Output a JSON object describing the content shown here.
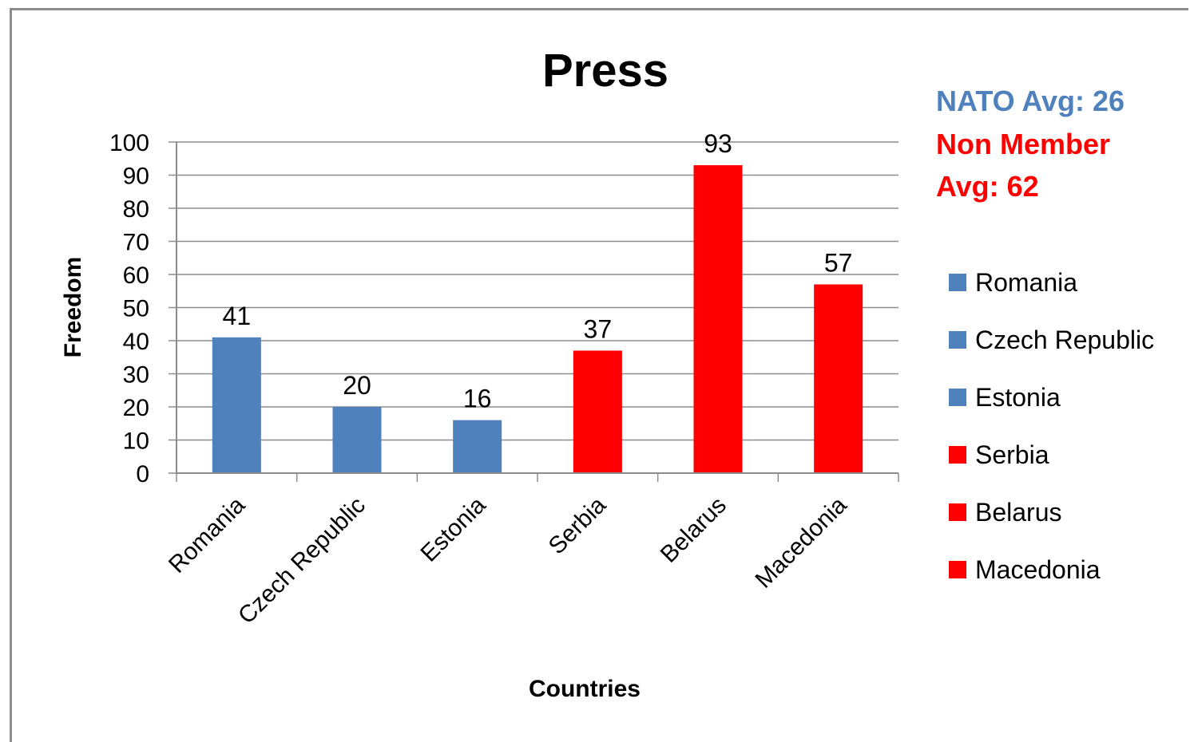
{
  "chart_data": {
    "type": "bar",
    "title": "Press",
    "xlabel": "Countries",
    "ylabel": "Freedom",
    "ylim": [
      0,
      100
    ],
    "yticks": [
      0,
      10,
      20,
      30,
      40,
      50,
      60,
      70,
      80,
      90,
      100
    ],
    "grid": true,
    "legend_position": "right",
    "categories": [
      "Romania",
      "Czech Republic",
      "Estonia",
      "Serbia",
      "Belarus",
      "Macedonia"
    ],
    "values": [
      41,
      20,
      16,
      37,
      93,
      57
    ],
    "colors": [
      "#4f81bd",
      "#4f81bd",
      "#4f81bd",
      "#ff0000",
      "#ff0000",
      "#ff0000"
    ],
    "legend": [
      {
        "label": "Romania",
        "color": "#4f81bd"
      },
      {
        "label": "Czech Republic",
        "color": "#4f81bd"
      },
      {
        "label": "Estonia",
        "color": "#4f81bd"
      },
      {
        "label": "Serbia",
        "color": "#ff0000"
      },
      {
        "label": "Belarus",
        "color": "#ff0000"
      },
      {
        "label": "Macedonia",
        "color": "#ff0000"
      }
    ],
    "annotations": {
      "nato": {
        "text": "NATO Avg: 26",
        "color": "#4f81bd"
      },
      "non_member_line1": {
        "text": "Non Member",
        "color": "#ff0000"
      },
      "non_member_line2": {
        "text": "Avg: 62",
        "color": "#ff0000"
      }
    }
  }
}
